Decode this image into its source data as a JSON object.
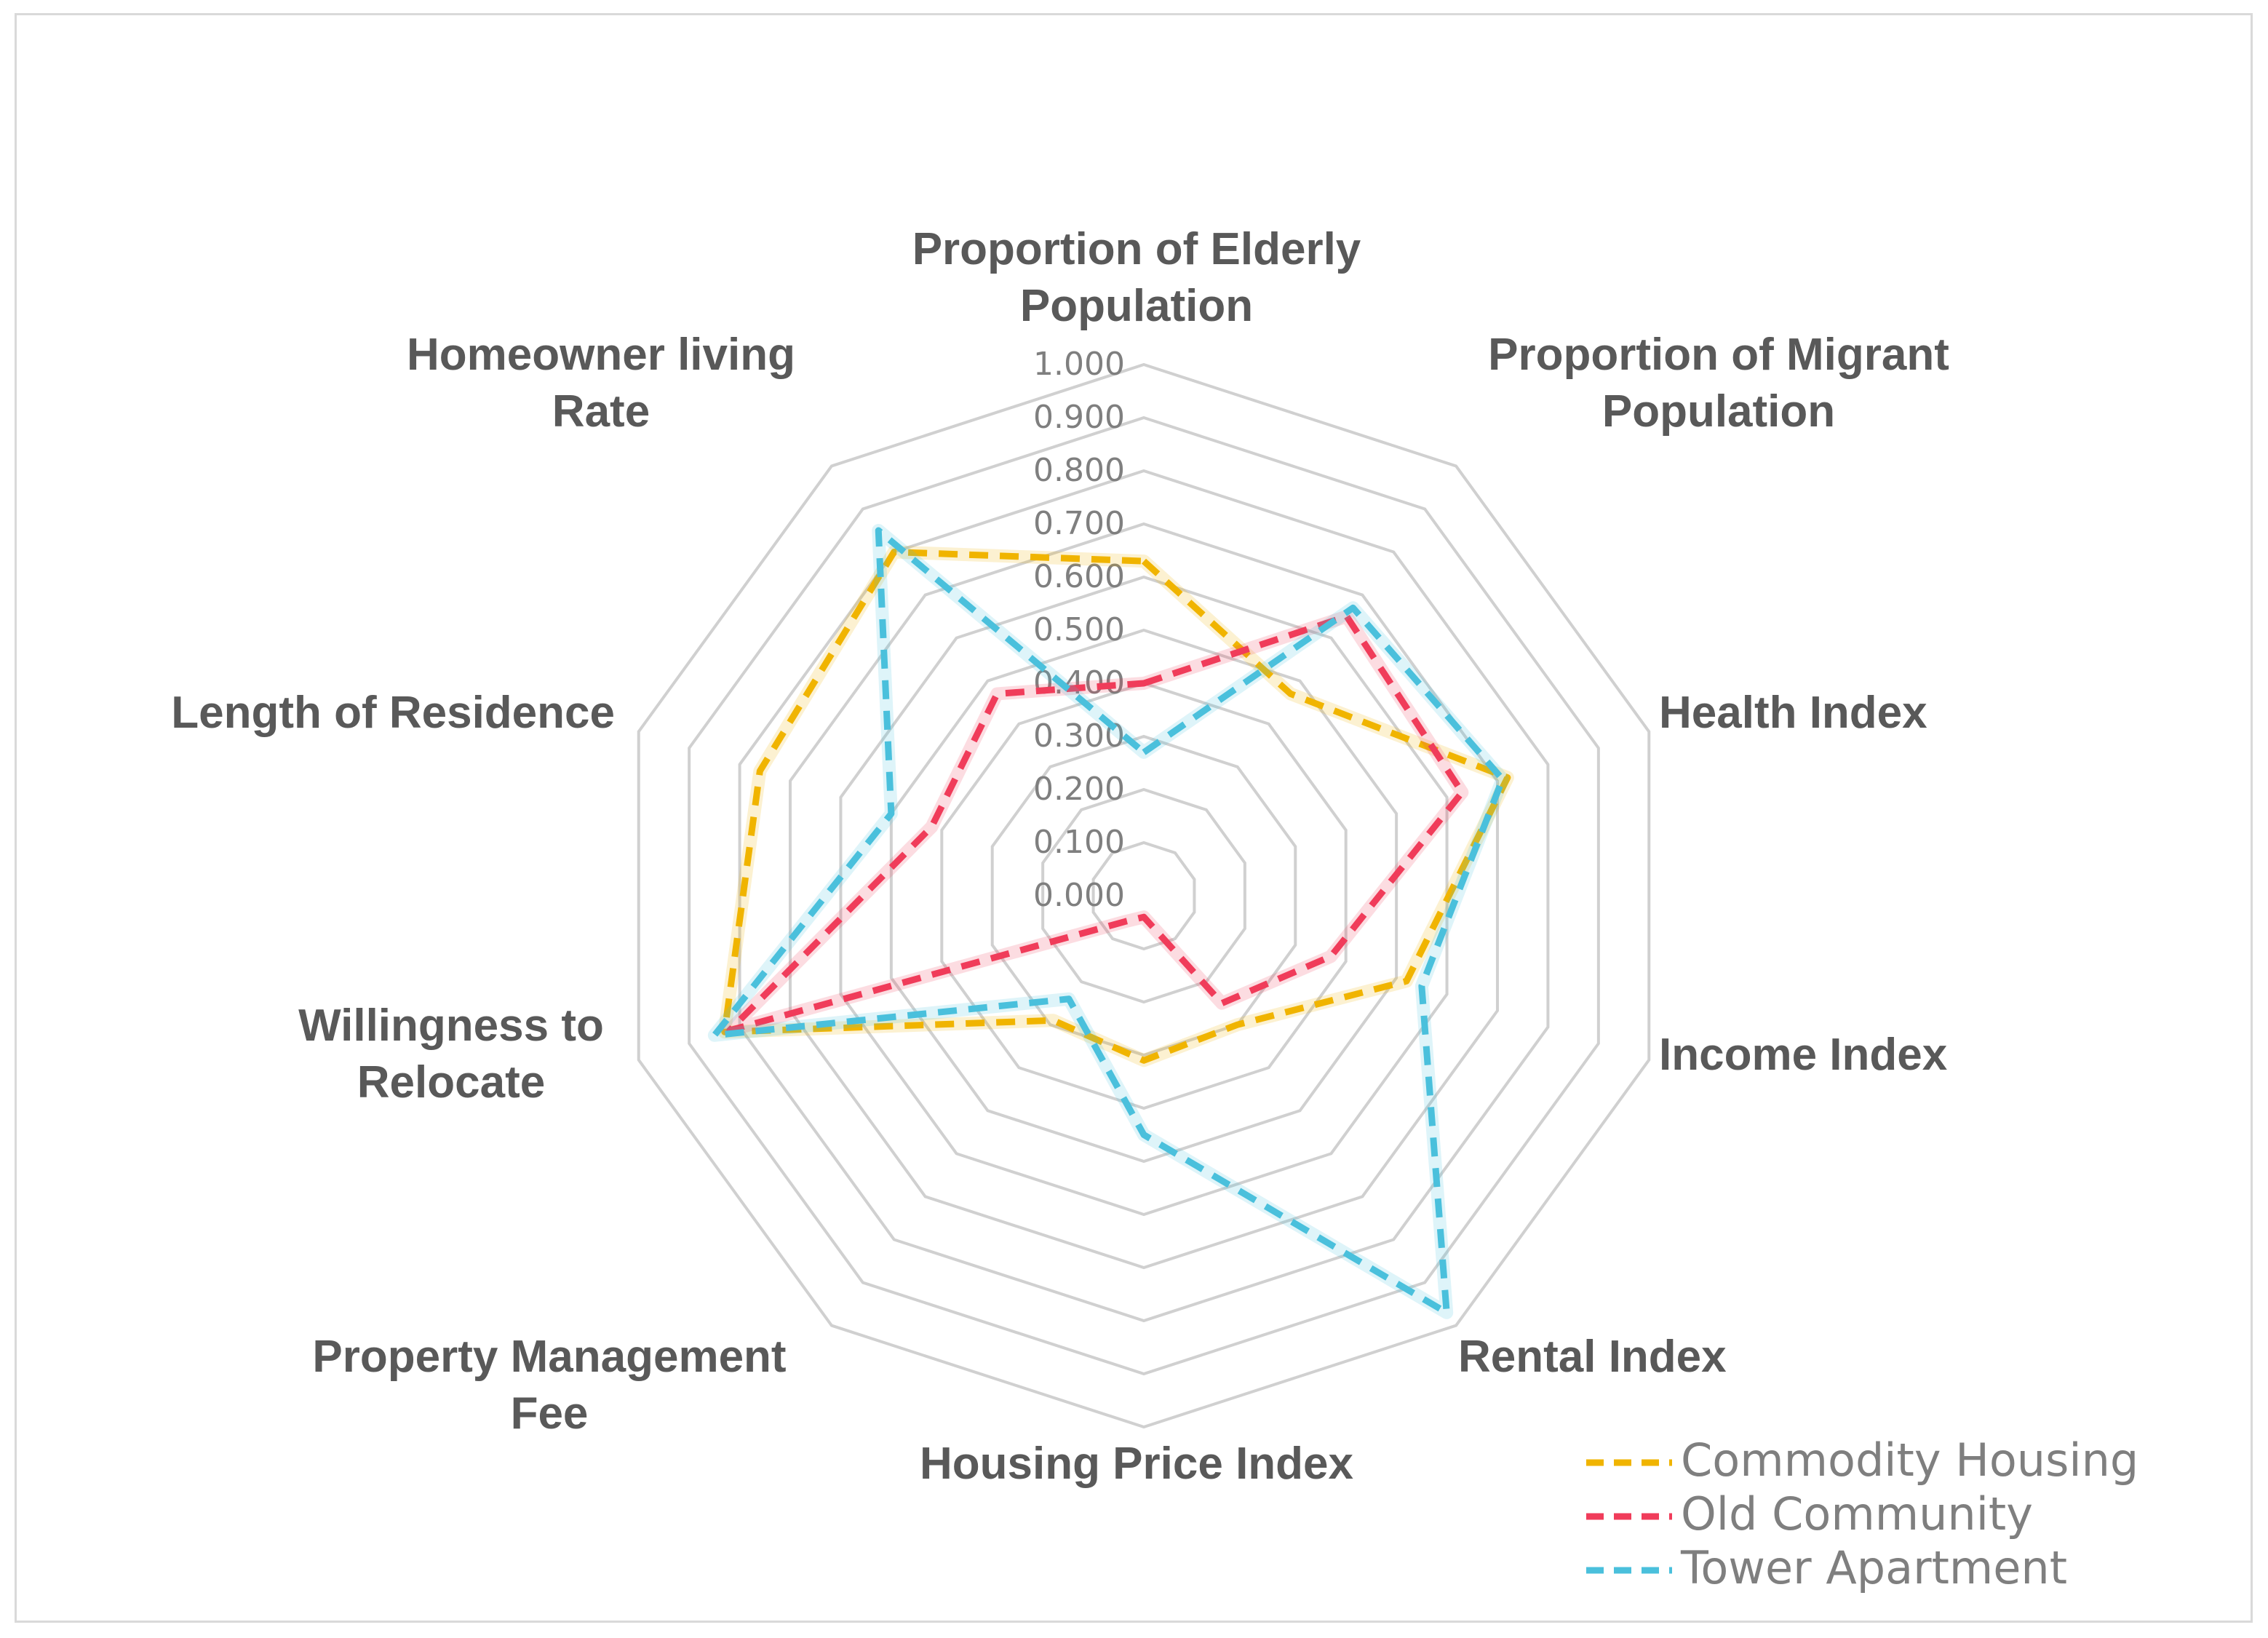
{
  "chart_data": {
    "type": "radar",
    "title": "",
    "axes": [
      "Proportion of Elderly Population",
      "Proportion of Migrant Population",
      "Health Index",
      "Income Index",
      "Rental Index",
      "Housing Price Index",
      "Property Management Fee",
      "Willingness to Relocate",
      "Length of Residence",
      "Homeowner living Rate"
    ],
    "axis_label_lines": [
      [
        "Proportion of Elderly",
        "Population"
      ],
      [
        "Proportion of Migrant",
        "Population"
      ],
      [
        "Health Index"
      ],
      [
        "Income Index"
      ],
      [
        "Rental Index"
      ],
      [
        "Housing Price Index"
      ],
      [
        "Property Management",
        "Fee"
      ],
      [
        "Willingness to",
        "Relocate"
      ],
      [
        "Length of Residence"
      ],
      [
        "Homeowner living",
        "Rate"
      ]
    ],
    "range": [
      0,
      1
    ],
    "ticks": [
      "0.000",
      "0.100",
      "0.200",
      "0.300",
      "0.400",
      "0.500",
      "0.600",
      "0.700",
      "0.800",
      "0.900",
      "1.000"
    ],
    "series": [
      {
        "name": "Commodity Housing",
        "color": "#f0b400",
        "values": [
          0.63,
          0.47,
          0.72,
          0.52,
          0.3,
          0.31,
          0.29,
          0.83,
          0.76,
          0.8
        ]
      },
      {
        "name": "Old Community",
        "color": "#f03c5a",
        "values": [
          0.4,
          0.65,
          0.63,
          0.37,
          0.25,
          0.04,
          0.06,
          0.82,
          0.42,
          0.47
        ]
      },
      {
        "name": "Tower Apartment",
        "color": "#4ac0dc",
        "values": [
          0.27,
          0.67,
          0.71,
          0.55,
          0.97,
          0.45,
          0.24,
          0.85,
          0.5,
          0.85
        ]
      }
    ],
    "legend_position": "bottom-right",
    "grid": true
  }
}
